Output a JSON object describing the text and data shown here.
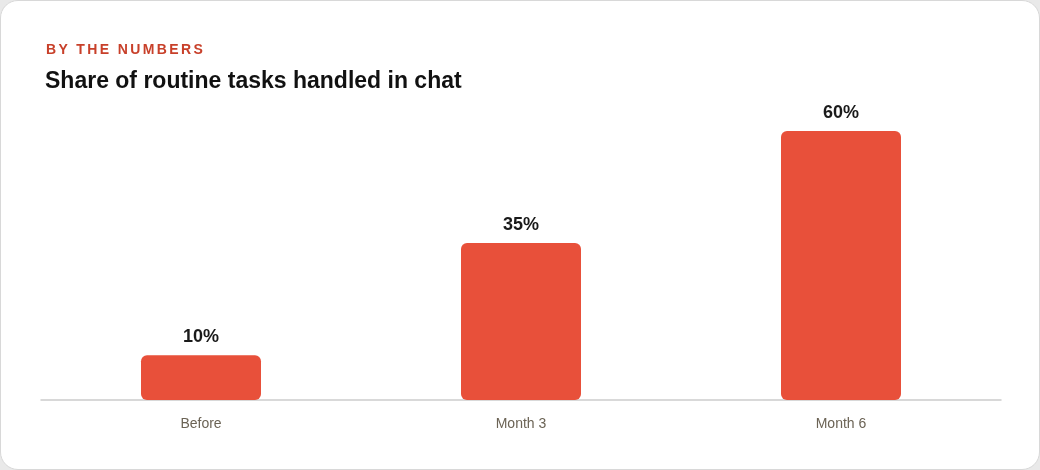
{
  "chart_data": {
    "type": "bar",
    "subtitle": "BY THE NUMBERS",
    "title": "Share of routine tasks handled in chat",
    "categories": [
      "Before",
      "Month 3",
      "Month 6"
    ],
    "values": [
      10,
      35,
      60
    ],
    "value_labels": [
      "10%",
      "35%",
      "60%"
    ],
    "color": "#e8503a"
  }
}
